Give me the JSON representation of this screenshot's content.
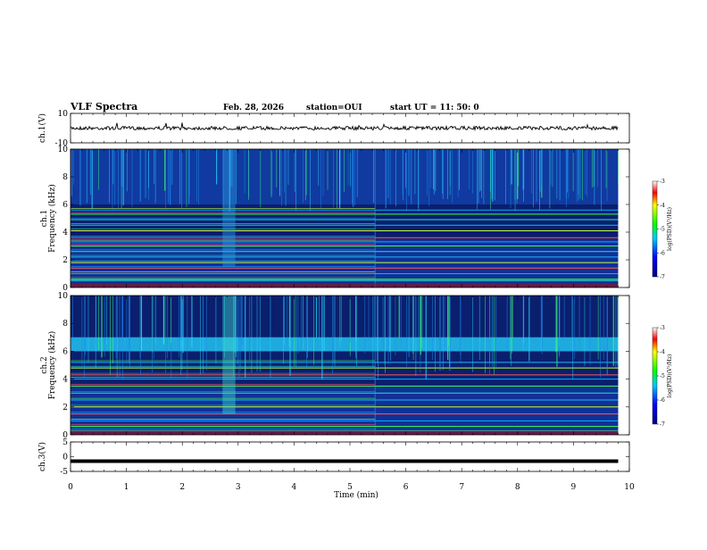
{
  "header": {
    "title": "VLF Spectra",
    "date": "Feb. 28, 2026",
    "station": "station=OUI",
    "start": "start  UT =   11: 50: 0"
  },
  "colors": {
    "background": "#ffffff",
    "spectrogram_base": "#0a1f6e",
    "trace": "#000000"
  },
  "chart_data": [
    {
      "type": "line",
      "name": "ch1-waveform",
      "ylabel": "ch.1(V)",
      "ylim": [
        -10,
        10
      ],
      "yticks": [
        "10",
        "-10"
      ],
      "x": [
        0,
        1,
        2,
        3,
        4,
        5,
        6,
        7,
        8,
        9,
        9.8
      ],
      "y": [
        0,
        0,
        0,
        0,
        0,
        0,
        0,
        0,
        0,
        0,
        0
      ]
    },
    {
      "type": "heatmap",
      "name": "ch1-spectrogram",
      "ylabel": "ch.1\nFrequency  (kHz)",
      "ylabel_lines": [
        "ch.1",
        "Frequency  (kHz)"
      ],
      "ylim": [
        0,
        10
      ],
      "yticks": [
        "0",
        "2",
        "4",
        "6",
        "8",
        "10"
      ],
      "xlim": [
        0,
        10
      ],
      "data_end_min": 9.8,
      "colorbar": {
        "label": "log(PSD)(V²/Hz)",
        "range": [
          -7,
          -3
        ],
        "ticks": [
          "-3",
          "-4",
          "-5",
          "-6",
          "-7"
        ]
      },
      "narrowband_lines_khz": [
        0.5,
        0.6,
        1.0,
        1.4,
        1.8,
        2.2,
        2.6,
        3.0,
        3.3,
        3.6,
        4.1,
        4.5,
        4.9,
        5.3,
        5.6
      ],
      "hiss_band_khz": [
        6.0,
        10.0
      ]
    },
    {
      "type": "heatmap",
      "name": "ch2-spectrogram",
      "ylabel": "ch.2\nFrequency  (kHz)",
      "ylabel_lines": [
        "ch.2",
        "Frequency  (kHz)"
      ],
      "ylim": [
        0,
        10
      ],
      "yticks": [
        "0",
        "2",
        "4",
        "6",
        "8",
        "10"
      ],
      "xlim": [
        0,
        10
      ],
      "data_end_min": 9.8,
      "colorbar": {
        "label": "log(PSD)(V²/Hz)",
        "range": [
          -7,
          -3
        ],
        "ticks": [
          "-3",
          "-4",
          "-5",
          "-6",
          "-7"
        ]
      },
      "narrowband_lines_khz": [
        0.3,
        0.6,
        1.0,
        1.5,
        2.0,
        2.5,
        3.0,
        3.5,
        4.0,
        4.3,
        4.8,
        5.2
      ],
      "hiss_band_khz": [
        6.0,
        7.0
      ]
    },
    {
      "type": "line",
      "name": "ch3-waveform",
      "ylabel": "ch.3(V)",
      "ylim": [
        -5,
        5
      ],
      "yticks": [
        "5",
        "0",
        "-5"
      ],
      "x": [
        0,
        9.8
      ],
      "y": [
        -1.5,
        -1.5
      ]
    }
  ],
  "xaxis": {
    "label": "Time  (min)",
    "range": [
      0,
      10
    ],
    "ticks": [
      "0",
      "1",
      "2",
      "3",
      "4",
      "5",
      "6",
      "7",
      "8",
      "9",
      "10"
    ]
  }
}
